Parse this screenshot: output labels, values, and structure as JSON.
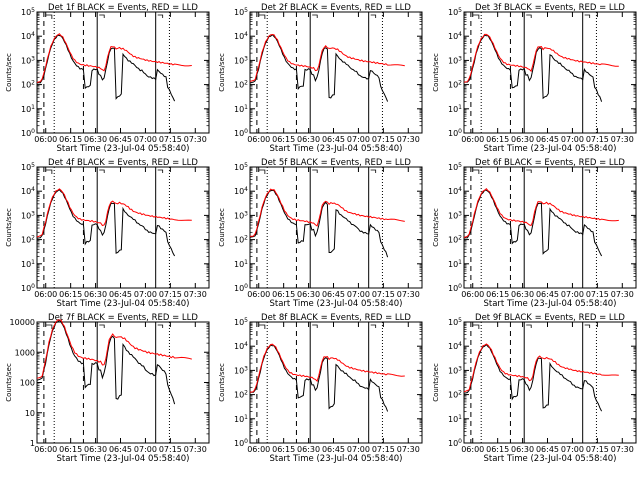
{
  "chart_data": [
    {
      "type": "line",
      "title": "Det 1f BLACK = Events, RED = LLD",
      "xlabel": "Start Time (23-Jul-04 05:58:40)",
      "ylabel": "Counts/sec",
      "y_scale": "log",
      "ylim": [
        1,
        100000
      ],
      "y_tick_labels": [
        "10^0",
        "10^1",
        "10^2",
        "10^3",
        "10^4",
        "10^5"
      ],
      "xlim_minutes": [
        0,
        100
      ],
      "x_tick_labels": [
        "06:00",
        "06:15",
        "06:30",
        "06:45",
        "07:00",
        "07:15",
        "07:30"
      ],
      "series": [
        {
          "name": "Events",
          "color": "#000000"
        },
        {
          "name": "LLD",
          "color": "#ff0000"
        }
      ]
    },
    {
      "type": "line",
      "title": "Det 2f BLACK = Events, RED = LLD",
      "xlabel": "Start Time (23-Jul-04 05:58:40)",
      "ylabel": "Counts/sec",
      "y_scale": "log",
      "ylim": [
        1,
        100000
      ],
      "y_tick_labels": [
        "10^0",
        "10^1",
        "10^2",
        "10^3",
        "10^4",
        "10^5"
      ],
      "xlim_minutes": [
        0,
        100
      ],
      "x_tick_labels": [
        "06:00",
        "06:15",
        "06:30",
        "06:45",
        "07:00",
        "07:15",
        "07:30"
      ],
      "series": [
        {
          "name": "Events",
          "color": "#000000"
        },
        {
          "name": "LLD",
          "color": "#ff0000"
        }
      ]
    },
    {
      "type": "line",
      "title": "Det 3f BLACK = Events, RED = LLD",
      "xlabel": "Start Time (23-Jul-04 05:58:40)",
      "ylabel": "Counts/sec",
      "y_scale": "log",
      "ylim": [
        1,
        100000
      ],
      "y_tick_labels": [
        "10^0",
        "10^1",
        "10^2",
        "10^3",
        "10^4",
        "10^5"
      ],
      "xlim_minutes": [
        0,
        100
      ],
      "x_tick_labels": [
        "06:00",
        "06:15",
        "06:30",
        "06:45",
        "07:00",
        "07:15",
        "07:30"
      ],
      "series": [
        {
          "name": "Events",
          "color": "#000000"
        },
        {
          "name": "LLD",
          "color": "#ff0000"
        }
      ]
    },
    {
      "type": "line",
      "title": "Det 4f BLACK = Events, RED = LLD",
      "xlabel": "Start Time (23-Jul-04 05:58:40)",
      "ylabel": "Counts/sec",
      "y_scale": "log",
      "ylim": [
        1,
        100000
      ],
      "y_tick_labels": [
        "10^0",
        "10^1",
        "10^2",
        "10^3",
        "10^4",
        "10^5"
      ],
      "xlim_minutes": [
        0,
        100
      ],
      "x_tick_labels": [
        "06:00",
        "06:15",
        "06:30",
        "06:45",
        "07:00",
        "07:15",
        "07:30"
      ],
      "series": [
        {
          "name": "Events",
          "color": "#000000"
        },
        {
          "name": "LLD",
          "color": "#ff0000"
        }
      ]
    },
    {
      "type": "line",
      "title": "Det 5f BLACK = Events, RED = LLD",
      "xlabel": "Start Time (23-Jul-04 05:58:40)",
      "ylabel": "Counts/sec",
      "y_scale": "log",
      "ylim": [
        1,
        100000
      ],
      "y_tick_labels": [
        "10^0",
        "10^1",
        "10^2",
        "10^3",
        "10^4",
        "10^5"
      ],
      "xlim_minutes": [
        0,
        100
      ],
      "x_tick_labels": [
        "06:00",
        "06:15",
        "06:30",
        "06:45",
        "07:00",
        "07:15",
        "07:30"
      ],
      "series": [
        {
          "name": "Events",
          "color": "#000000"
        },
        {
          "name": "LLD",
          "color": "#ff0000"
        }
      ]
    },
    {
      "type": "line",
      "title": "Det 6f BLACK = Events, RED = LLD",
      "xlabel": "Start Time (23-Jul-04 05:58:40)",
      "ylabel": "Counts/sec",
      "y_scale": "log",
      "ylim": [
        1,
        100000
      ],
      "y_tick_labels": [
        "10^0",
        "10^1",
        "10^2",
        "10^3",
        "10^4",
        "10^5"
      ],
      "xlim_minutes": [
        0,
        100
      ],
      "x_tick_labels": [
        "06:00",
        "06:15",
        "06:30",
        "06:45",
        "07:00",
        "07:15",
        "07:30"
      ],
      "series": [
        {
          "name": "Events",
          "color": "#000000"
        },
        {
          "name": "LLD",
          "color": "#ff0000"
        }
      ]
    },
    {
      "type": "line",
      "title": "Det 7f BLACK = Events, RED = LLD",
      "xlabel": "Start Time (23-Jul-04 05:58:40)",
      "ylabel": "Counts/sec",
      "y_scale": "log",
      "ylim": [
        1,
        10000
      ],
      "y_tick_labels": [
        "1",
        "10",
        "100",
        "1000",
        "10000"
      ],
      "xlim_minutes": [
        0,
        100
      ],
      "x_tick_labels": [
        "06:00",
        "06:15",
        "06:30",
        "06:45",
        "07:00",
        "07:15",
        "07:30"
      ],
      "series": [
        {
          "name": "Events",
          "color": "#000000"
        },
        {
          "name": "LLD",
          "color": "#ff0000"
        }
      ]
    },
    {
      "type": "line",
      "title": "Det 8f BLACK = Events, RED = LLD",
      "xlabel": "Start Time (23-Jul-04 05:58:40)",
      "ylabel": "Counts/sec",
      "y_scale": "log",
      "ylim": [
        1,
        100000
      ],
      "y_tick_labels": [
        "10^0",
        "10^1",
        "10^2",
        "10^3",
        "10^4",
        "10^5"
      ],
      "xlim_minutes": [
        0,
        100
      ],
      "x_tick_labels": [
        "06:00",
        "06:15",
        "06:30",
        "06:45",
        "07:00",
        "07:15",
        "07:30"
      ],
      "series": [
        {
          "name": "Events",
          "color": "#000000"
        },
        {
          "name": "LLD",
          "color": "#ff0000"
        }
      ]
    },
    {
      "type": "line",
      "title": "Det 9f BLACK = Events, RED = LLD",
      "xlabel": "Start Time (23-Jul-04 05:58:40)",
      "ylabel": "Counts/sec",
      "y_scale": "log",
      "ylim": [
        1,
        100000
      ],
      "y_tick_labels": [
        "10^0",
        "10^1",
        "10^2",
        "10^3",
        "10^4",
        "10^5"
      ],
      "xlim_minutes": [
        0,
        100
      ],
      "x_tick_labels": [
        "06:00",
        "06:15",
        "06:30",
        "06:45",
        "07:00",
        "07:15",
        "07:30"
      ],
      "series": [
        {
          "name": "Events",
          "color": "#000000"
        },
        {
          "name": "LLD",
          "color": "#ff0000"
        }
      ]
    }
  ],
  "shared": {
    "vertical_markers_minutes": [
      {
        "t": 4,
        "style": "dashed"
      },
      {
        "t": 10,
        "style": "dotted"
      },
      {
        "t": 27,
        "style": "dashed"
      },
      {
        "t": 35,
        "style": "solid"
      },
      {
        "t": 69,
        "style": "solid"
      },
      {
        "t": 77,
        "style": "dotted"
      }
    ],
    "events_curve": [
      [
        0,
        120
      ],
      [
        2,
        125
      ],
      [
        3,
        150
      ],
      [
        4,
        250
      ],
      [
        5,
        450
      ],
      [
        6,
        900
      ],
      [
        7,
        1800
      ],
      [
        8,
        3200
      ],
      [
        9,
        5000
      ],
      [
        10,
        7000
      ],
      [
        11,
        9000
      ],
      [
        12,
        10500
      ],
      [
        13,
        11000
      ],
      [
        14,
        10000
      ],
      [
        15,
        8000
      ],
      [
        16,
        6000
      ],
      [
        17,
        4200
      ],
      [
        18,
        2800
      ],
      [
        19,
        1900
      ],
      [
        20,
        1300
      ],
      [
        21,
        950
      ],
      [
        22,
        750
      ],
      [
        23,
        620
      ],
      [
        24,
        530
      ],
      [
        25,
        470
      ],
      [
        26,
        440
      ],
      [
        27,
        420
      ],
      [
        28,
        70
      ],
      [
        29,
        80
      ],
      [
        30,
        85
      ],
      [
        31,
        90
      ],
      [
        32,
        400
      ],
      [
        33,
        420
      ],
      [
        34,
        430
      ],
      [
        35,
        440
      ],
      [
        36,
        260
      ],
      [
        37,
        250
      ],
      [
        38,
        150
      ],
      [
        39,
        200
      ],
      [
        40,
        400
      ],
      [
        41,
        900
      ],
      [
        42,
        2000
      ],
      [
        43,
        3000
      ],
      [
        44,
        3300
      ],
      [
        45,
        3000
      ],
      [
        46,
        28
      ],
      [
        47,
        30
      ],
      [
        48,
        35
      ],
      [
        49,
        40
      ],
      [
        50,
        1800
      ],
      [
        51,
        1500
      ],
      [
        52,
        1200
      ],
      [
        53,
        1000
      ],
      [
        54,
        900
      ],
      [
        55,
        800
      ],
      [
        56,
        720
      ],
      [
        57,
        620
      ],
      [
        58,
        520
      ],
      [
        59,
        450
      ],
      [
        60,
        400
      ],
      [
        61,
        380
      ],
      [
        62,
        330
      ],
      [
        63,
        270
      ],
      [
        64,
        230
      ],
      [
        65,
        210
      ],
      [
        66,
        200
      ],
      [
        67,
        190
      ],
      [
        68,
        180
      ],
      [
        69,
        170
      ],
      [
        70,
        400
      ],
      [
        71,
        350
      ],
      [
        72,
        300
      ],
      [
        73,
        260
      ],
      [
        74,
        230
      ],
      [
        75,
        200
      ],
      [
        76,
        80
      ],
      [
        77,
        60
      ],
      [
        78,
        40
      ],
      [
        79,
        30
      ],
      [
        80,
        20
      ]
    ],
    "lld_curve": [
      [
        0,
        130
      ],
      [
        2,
        140
      ],
      [
        3,
        170
      ],
      [
        4,
        300
      ],
      [
        5,
        550
      ],
      [
        6,
        1100
      ],
      [
        7,
        2100
      ],
      [
        8,
        3700
      ],
      [
        9,
        5600
      ],
      [
        10,
        7800
      ],
      [
        11,
        9800
      ],
      [
        12,
        11500
      ],
      [
        13,
        12000
      ],
      [
        14,
        11000
      ],
      [
        15,
        9000
      ],
      [
        16,
        6800
      ],
      [
        17,
        4800
      ],
      [
        18,
        3300
      ],
      [
        19,
        2300
      ],
      [
        20,
        1650
      ],
      [
        21,
        1250
      ],
      [
        22,
        1000
      ],
      [
        23,
        850
      ],
      [
        24,
        760
      ],
      [
        25,
        700
      ],
      [
        26,
        670
      ],
      [
        27,
        650
      ],
      [
        28,
        630
      ],
      [
        29,
        620
      ],
      [
        30,
        600
      ],
      [
        31,
        590
      ],
      [
        32,
        580
      ],
      [
        33,
        560
      ],
      [
        34,
        540
      ],
      [
        35,
        520
      ],
      [
        36,
        500
      ],
      [
        37,
        480
      ],
      [
        38,
        400
      ],
      [
        39,
        380
      ],
      [
        40,
        600
      ],
      [
        41,
        1300
      ],
      [
        42,
        2500
      ],
      [
        43,
        3500
      ],
      [
        44,
        3800
      ],
      [
        45,
        3500
      ],
      [
        46,
        3000
      ],
      [
        47,
        3200
      ],
      [
        48,
        3300
      ],
      [
        49,
        3100
      ],
      [
        50,
        3000
      ],
      [
        51,
        2800
      ],
      [
        52,
        2500
      ],
      [
        53,
        2200
      ],
      [
        54,
        1900
      ],
      [
        55,
        1700
      ],
      [
        56,
        1500
      ],
      [
        57,
        1400
      ],
      [
        58,
        1300
      ],
      [
        59,
        1250
      ],
      [
        60,
        1200
      ],
      [
        61,
        1150
      ],
      [
        62,
        1100
      ],
      [
        63,
        1050
      ],
      [
        64,
        1000
      ],
      [
        65,
        980
      ],
      [
        66,
        950
      ],
      [
        67,
        920
      ],
      [
        68,
        900
      ],
      [
        69,
        880
      ],
      [
        70,
        860
      ],
      [
        71,
        840
      ],
      [
        72,
        820
      ],
      [
        73,
        800
      ],
      [
        74,
        780
      ],
      [
        75,
        760
      ],
      [
        76,
        740
      ],
      [
        77,
        720
      ],
      [
        78,
        700
      ],
      [
        79,
        690
      ],
      [
        80,
        680
      ],
      [
        82,
        670
      ],
      [
        84,
        650
      ],
      [
        86,
        630
      ],
      [
        88,
        610
      ],
      [
        90,
        600
      ]
    ]
  }
}
